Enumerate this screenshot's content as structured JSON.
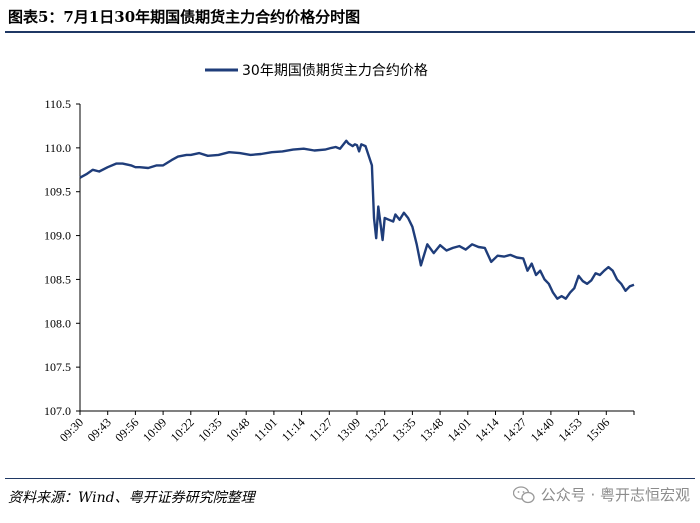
{
  "header": {
    "title": "图表5：7月1日30年期国债期货主力合约价格分时图"
  },
  "footer": {
    "source": "资料来源：Wind、粤开证券研究院整理",
    "watermark": "公众号 · 粤开志恒宏观"
  },
  "colors": {
    "series": "#1f3d7a",
    "rule": "#1f3864"
  },
  "chart_data": {
    "type": "line",
    "legend": {
      "position": "top-center"
    },
    "ylim": [
      107.0,
      110.5
    ],
    "yticks": [
      "107.0",
      "107.5",
      "108.0",
      "108.5",
      "109.0",
      "109.5",
      "110.0",
      "110.5"
    ],
    "xticks": [
      "09:30",
      "09:43",
      "09:56",
      "10:09",
      "10:22",
      "10:35",
      "10:48",
      "11:01",
      "11:14",
      "11:27",
      "13:09",
      "13:22",
      "13:35",
      "13:48",
      "14:01",
      "14:14",
      "14:27",
      "14:40",
      "14:53",
      "15:06"
    ],
    "grid": false,
    "series": [
      {
        "name": "30年期国债期货主力合约价格",
        "x_index": [
          0,
          3,
          6,
          9,
          13,
          17,
          20,
          24,
          26,
          28,
          32,
          36,
          39,
          43,
          46,
          50,
          52,
          56,
          60,
          65,
          70,
          75,
          80,
          85,
          90,
          95,
          100,
          105,
          110,
          115,
          118,
          120,
          122,
          125,
          126,
          128,
          129,
          130,
          131,
          132,
          134,
          137,
          138,
          139,
          140,
          142,
          143,
          145,
          147,
          148,
          150,
          152,
          154,
          156,
          158,
          160,
          163,
          166,
          169,
          172,
          175,
          178,
          181,
          184,
          187,
          190,
          193,
          196,
          199,
          202,
          205,
          208,
          210,
          212,
          214,
          216,
          218,
          220,
          222,
          224,
          226,
          228,
          230,
          232,
          234,
          236,
          238,
          240,
          242,
          244,
          246,
          248,
          250,
          252,
          254,
          256,
          258,
          260
        ],
        "values": [
          109.66,
          109.7,
          109.75,
          109.73,
          109.78,
          109.82,
          109.82,
          109.8,
          109.78,
          109.78,
          109.77,
          109.8,
          109.8,
          109.86,
          109.9,
          109.92,
          109.92,
          109.94,
          109.91,
          109.92,
          109.95,
          109.94,
          109.92,
          109.93,
          109.95,
          109.96,
          109.98,
          109.99,
          109.97,
          109.98,
          110.0,
          110.01,
          109.99,
          110.08,
          110.05,
          110.02,
          110.04,
          110.03,
          109.96,
          110.04,
          110.02,
          109.8,
          109.2,
          108.97,
          109.33,
          108.95,
          109.2,
          109.18,
          109.16,
          109.24,
          109.18,
          109.26,
          109.2,
          109.1,
          108.9,
          108.66,
          108.9,
          108.8,
          108.89,
          108.83,
          108.86,
          108.88,
          108.84,
          108.9,
          108.87,
          108.86,
          108.7,
          108.77,
          108.76,
          108.78,
          108.75,
          108.74,
          108.6,
          108.68,
          108.55,
          108.6,
          108.5,
          108.45,
          108.35,
          108.28,
          108.31,
          108.28,
          108.35,
          108.4,
          108.54,
          108.48,
          108.45,
          108.49,
          108.57,
          108.55,
          108.6,
          108.64,
          108.6,
          108.5,
          108.45,
          108.37,
          108.42,
          108.44
        ]
      }
    ],
    "x_count": 261
  }
}
